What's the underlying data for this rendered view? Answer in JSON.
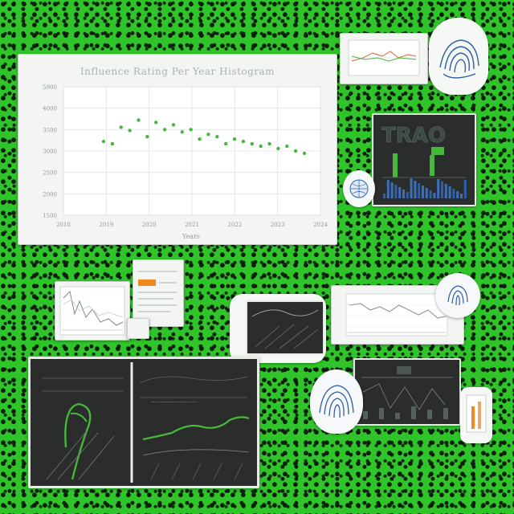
{
  "main_chart": {
    "title": "Influence Rating Per Year Histogram",
    "ylabels": [
      "5900",
      "4000",
      "3500",
      "3000",
      "2500",
      "2000",
      "1500"
    ],
    "xlabels": [
      "2018",
      "2019",
      "2020",
      "2021",
      "2022",
      "2023",
      "2024"
    ],
    "xlabel": "Years"
  },
  "dark_panel": {
    "heading": "TRAO"
  },
  "chart_data": {
    "type": "scatter",
    "x": [
      1,
      2,
      3,
      4,
      5,
      6,
      7,
      8,
      9,
      10,
      11,
      12,
      13,
      14,
      15,
      16,
      17,
      18,
      19,
      20,
      21,
      22,
      23,
      24
    ],
    "y": [
      3050,
      3000,
      3350,
      3280,
      3500,
      3150,
      3450,
      3300,
      3400,
      3250,
      3300,
      3100,
      3200,
      3150,
      3000,
      3100,
      3050,
      3000,
      2950,
      3000,
      2900,
      2950,
      2850,
      2800
    ],
    "ylim": [
      1500,
      4200
    ],
    "grid": true
  },
  "colors": {
    "background": "#2fc42a",
    "card": "#f3f5f2",
    "dark_panel": "#2a2d2c",
    "green_series": "#47b83c",
    "blue_series": "#2f5fa8",
    "orange_accent": "#f08a1e"
  }
}
